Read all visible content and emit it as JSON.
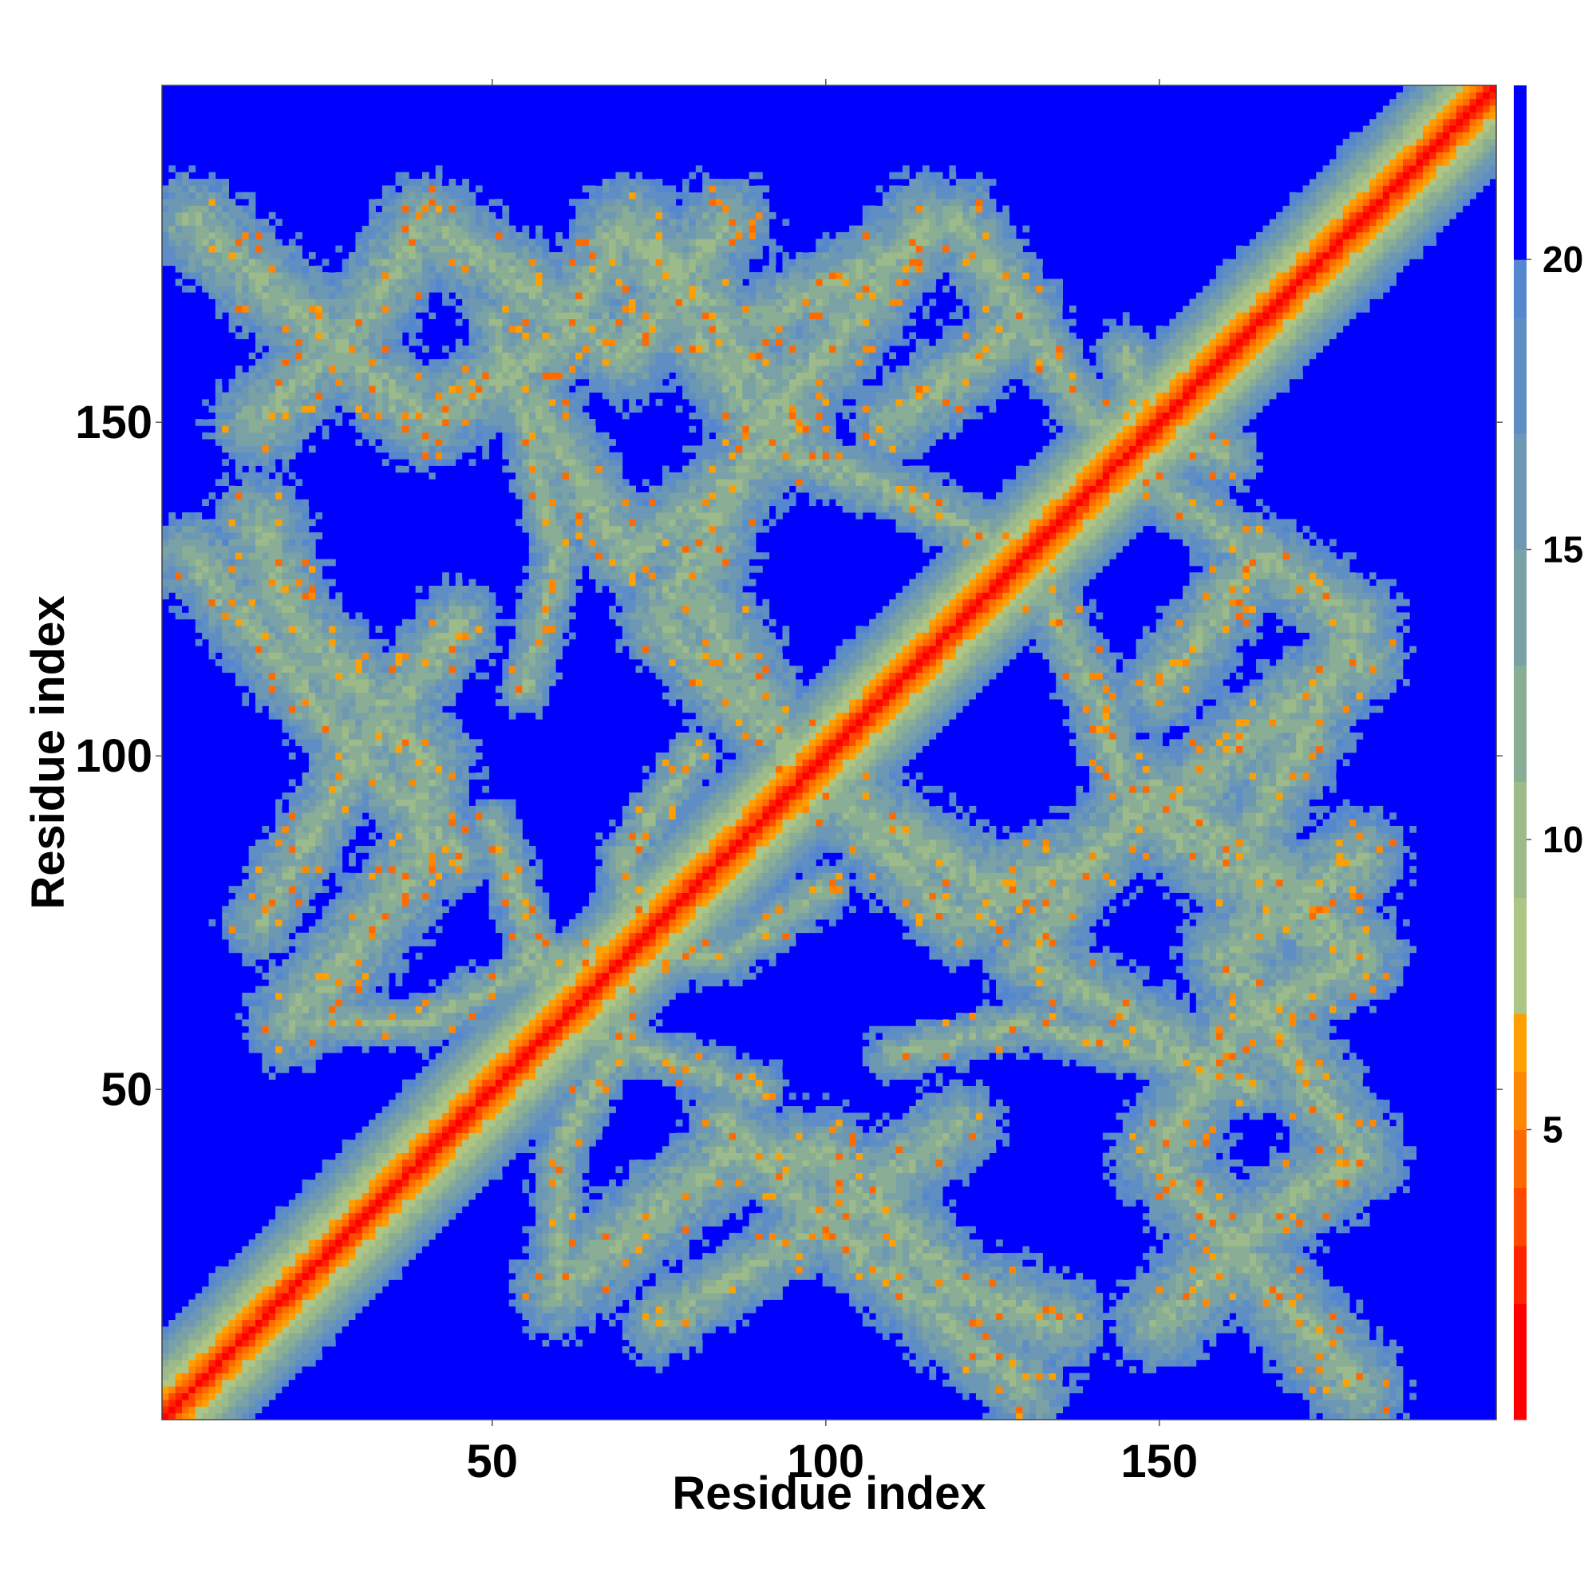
{
  "chart_data": {
    "type": "heatmap",
    "title": "",
    "xlabel": "Residue index",
    "ylabel": "Residue index",
    "n_residues": 200,
    "xlim": [
      1,
      200
    ],
    "ylim": [
      1,
      200
    ],
    "x_ticks": [
      50,
      100,
      150
    ],
    "y_ticks": [
      50,
      100,
      150
    ],
    "colorbar": {
      "ticks": [
        5,
        10,
        15,
        20
      ],
      "range": [
        0,
        23
      ],
      "levels": [
        {
          "max": 2,
          "color": "#ff0000"
        },
        {
          "max": 3,
          "color": "#ff2400"
        },
        {
          "max": 4,
          "color": "#ff4a00"
        },
        {
          "max": 5,
          "color": "#ff6a00"
        },
        {
          "max": 6,
          "color": "#ff8800"
        },
        {
          "max": 7,
          "color": "#ffa000"
        },
        {
          "max": 9,
          "color": "#aec583"
        },
        {
          "max": 11,
          "color": "#9cba8a"
        },
        {
          "max": 13,
          "color": "#8aae95"
        },
        {
          "max": 15,
          "color": "#7aa2a6"
        },
        {
          "max": 17,
          "color": "#6d98b4"
        },
        {
          "max": 19,
          "color": "#5f8ec5"
        },
        {
          "max": 20,
          "color": "#5487cf"
        },
        {
          "max": 23,
          "color": "#0000ff"
        }
      ]
    },
    "background_color": "#0000ff",
    "diagonal_band": {
      "core_width": 3,
      "halo_width": 14
    },
    "contact_strands": [
      {
        "points": [
          [
            5,
            180
          ],
          [
            40,
            150
          ],
          [
            60,
            162
          ],
          [
            70,
            180
          ],
          [
            90,
            150
          ],
          [
            100,
            160
          ],
          [
            115,
            180
          ]
        ],
        "width": 9
      },
      {
        "points": [
          [
            55,
            155
          ],
          [
            70,
            130
          ],
          [
            85,
            140
          ],
          [
            75,
            120
          ],
          [
            95,
            100
          ]
        ],
        "width": 8
      },
      {
        "points": [
          [
            5,
            130
          ],
          [
            30,
            100
          ],
          [
            45,
            120
          ]
        ],
        "width": 8
      },
      {
        "points": [
          [
            15,
            75
          ],
          [
            30,
            100
          ],
          [
            45,
            85
          ]
        ],
        "width": 7
      },
      {
        "points": [
          [
            100,
            95
          ],
          [
            125,
            80
          ],
          [
            140,
            85
          ],
          [
            150,
            95
          ],
          [
            170,
            80
          ],
          [
            180,
            70
          ]
        ],
        "width": 9
      },
      {
        "points": [
          [
            150,
            15
          ],
          [
            165,
            30
          ],
          [
            180,
            40
          ],
          [
            170,
            55
          ],
          [
            160,
            70
          ],
          [
            180,
            85
          ]
        ],
        "width": 9
      },
      {
        "points": [
          [
            165,
            90
          ],
          [
            180,
            120
          ],
          [
            165,
            130
          ],
          [
            150,
            110
          ]
        ],
        "width": 8
      },
      {
        "points": [
          [
            60,
            20
          ],
          [
            85,
            40
          ],
          [
            100,
            40
          ],
          [
            120,
            20
          ],
          [
            135,
            15
          ]
        ],
        "width": 9
      },
      {
        "points": [
          [
            130,
            130
          ],
          [
            140,
            110
          ],
          [
            145,
            95
          ]
        ],
        "width": 6
      },
      {
        "points": [
          [
            145,
            160
          ],
          [
            150,
            140
          ],
          [
            165,
            130
          ]
        ],
        "width": 6
      },
      {
        "points": [
          [
            20,
            60
          ],
          [
            40,
            60
          ],
          [
            60,
            70
          ],
          [
            85,
            70
          ],
          [
            100,
            80
          ]
        ],
        "width": 5
      },
      {
        "points": [
          [
            110,
            55
          ],
          [
            130,
            60
          ],
          [
            150,
            55
          ],
          [
            165,
            50
          ]
        ],
        "width": 5
      },
      {
        "points": [
          [
            50,
            90
          ],
          [
            60,
            60
          ],
          [
            70,
            55
          ]
        ],
        "width": 5
      }
    ]
  }
}
